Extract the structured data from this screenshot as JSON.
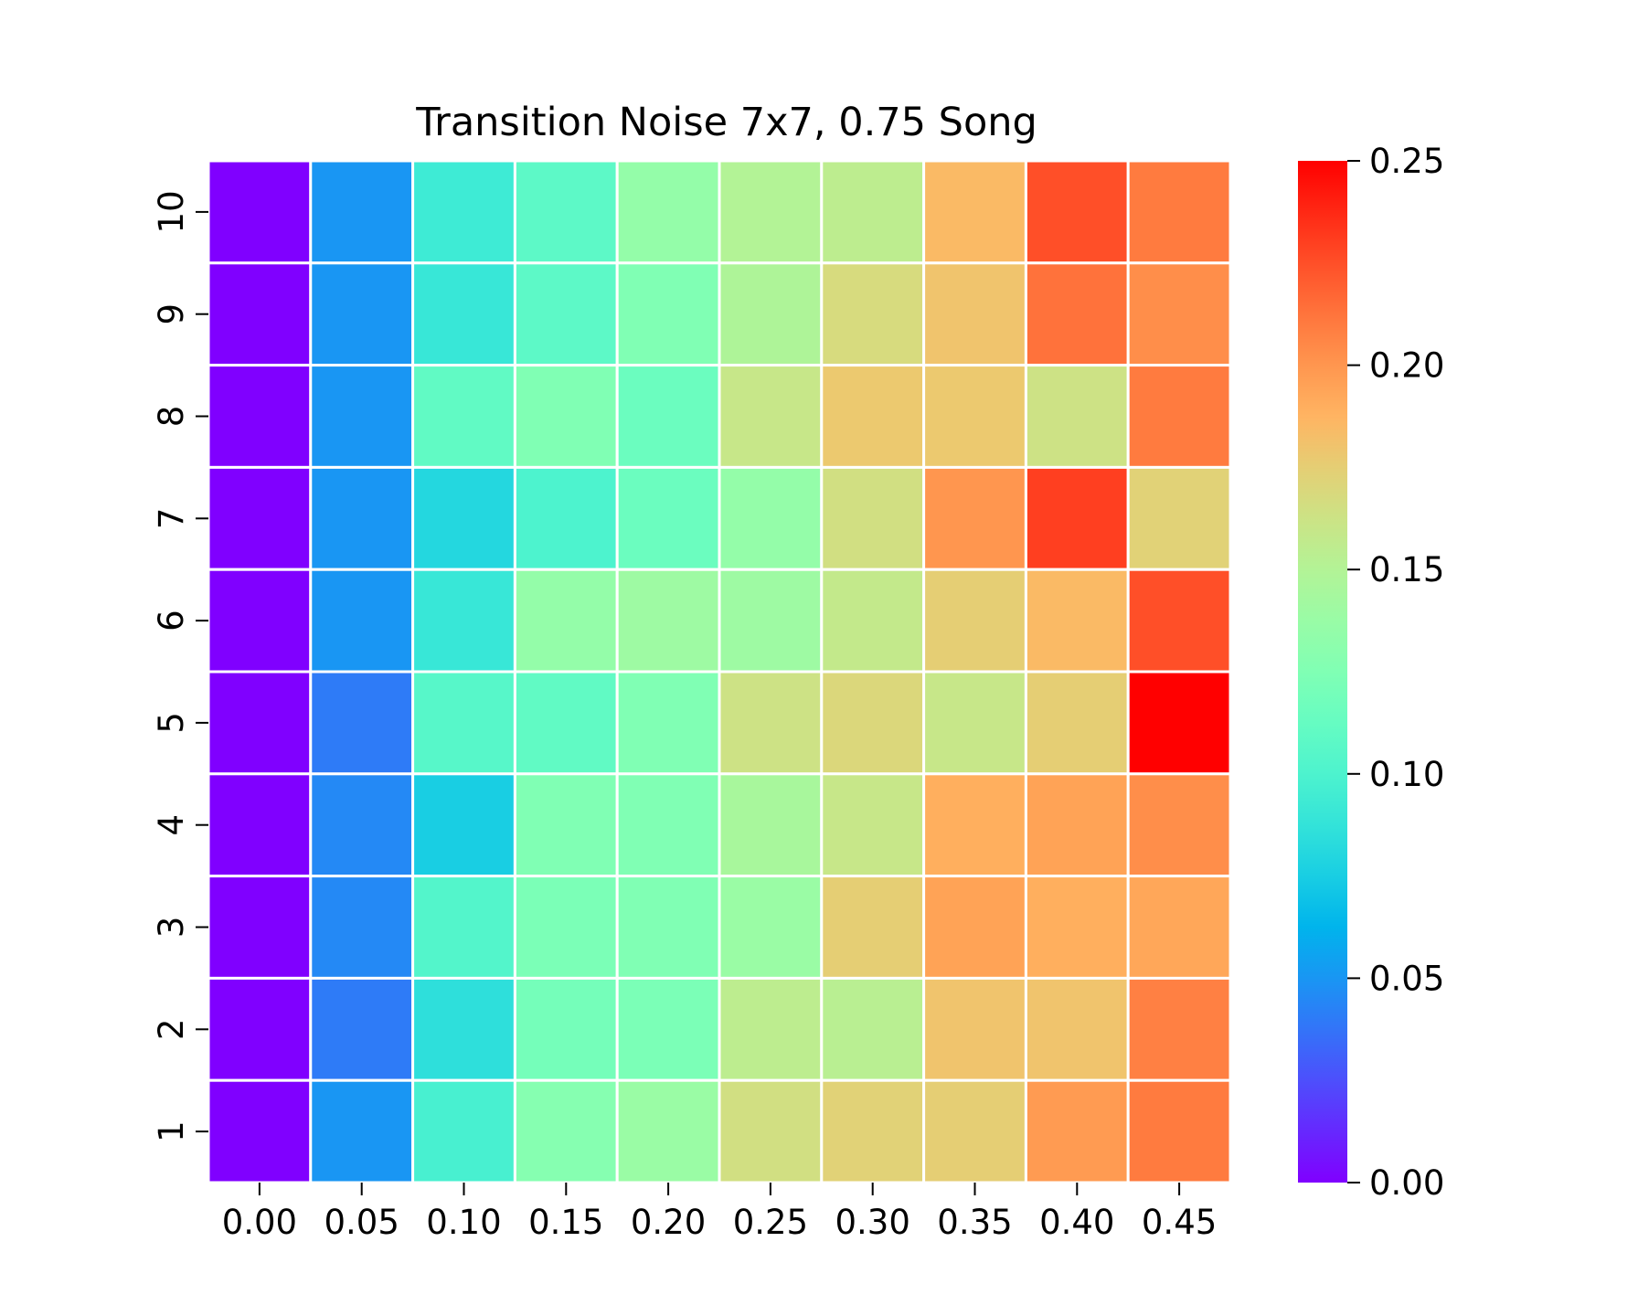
{
  "chart_data": {
    "type": "heatmap",
    "title": "Transition Noise 7x7, 0.75 Song",
    "xlabel": "",
    "ylabel": "",
    "x_categories": [
      "0.00",
      "0.05",
      "0.10",
      "0.15",
      "0.20",
      "0.25",
      "0.30",
      "0.35",
      "0.40",
      "0.45"
    ],
    "y_categories": [
      "10",
      "9",
      "8",
      "7",
      "6",
      "5",
      "4",
      "3",
      "2",
      "1"
    ],
    "values": [
      [
        0.0,
        0.05,
        0.093,
        0.108,
        0.135,
        0.15,
        0.155,
        0.185,
        0.225,
        0.21
      ],
      [
        0.0,
        0.05,
        0.09,
        0.108,
        0.125,
        0.148,
        0.168,
        0.18,
        0.213,
        0.203
      ],
      [
        0.0,
        0.05,
        0.11,
        0.125,
        0.115,
        0.16,
        0.178,
        0.178,
        0.163,
        0.21
      ],
      [
        0.0,
        0.05,
        0.08,
        0.1,
        0.115,
        0.135,
        0.165,
        0.2,
        0.23,
        0.173
      ],
      [
        0.0,
        0.05,
        0.09,
        0.135,
        0.14,
        0.14,
        0.158,
        0.175,
        0.185,
        0.225
      ],
      [
        0.0,
        0.04,
        0.105,
        0.11,
        0.125,
        0.163,
        0.17,
        0.16,
        0.175,
        0.25
      ],
      [
        0.0,
        0.045,
        0.075,
        0.125,
        0.125,
        0.145,
        0.16,
        0.19,
        0.195,
        0.203
      ],
      [
        0.0,
        0.045,
        0.103,
        0.123,
        0.125,
        0.138,
        0.175,
        0.195,
        0.19,
        0.193
      ],
      [
        0.0,
        0.04,
        0.085,
        0.12,
        0.123,
        0.155,
        0.153,
        0.18,
        0.18,
        0.208
      ],
      [
        0.0,
        0.05,
        0.098,
        0.128,
        0.138,
        0.165,
        0.173,
        0.175,
        0.198,
        0.21
      ]
    ],
    "colorbar": {
      "min": 0.0,
      "max": 0.25,
      "ticks": [
        "0.00",
        "0.05",
        "0.10",
        "0.15",
        "0.20",
        "0.25"
      ],
      "tick_values": [
        0.0,
        0.05,
        0.1,
        0.15,
        0.2,
        0.25
      ],
      "colormap": "rainbow"
    },
    "grid_line_color": "#ffffff"
  }
}
